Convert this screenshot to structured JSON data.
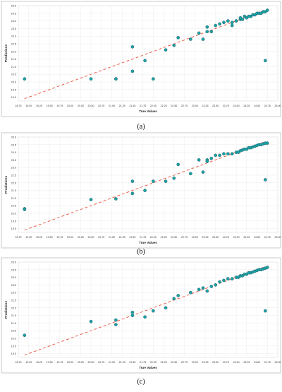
{
  "chart_data": [
    {
      "type": "scatter",
      "caption": "(a)",
      "xlabel": "True Values",
      "ylabel": "Predictions",
      "xlim": [
        18.75,
        25.0
      ],
      "ylim": [
        18.75,
        25.0
      ],
      "xticks": [
        "18.75",
        "19.00",
        "19.25",
        "19.50",
        "19.75",
        "20.00",
        "20.25",
        "20.50",
        "20.75",
        "21.00",
        "21.25",
        "21.50",
        "21.75",
        "22.00",
        "22.25",
        "22.50",
        "22.75",
        "23.00",
        "23.25",
        "23.50",
        "23.75",
        "24.00",
        "24.25",
        "24.50",
        "24.75",
        "25.00"
      ],
      "yticks": [
        "19.0",
        "19.5",
        "20.0",
        "20.5",
        "21.0",
        "21.5",
        "22.0",
        "22.5",
        "23.0",
        "23.5",
        "24.0",
        "24.5",
        "25.0"
      ],
      "grid": true,
      "reference_line": {
        "style": "dashed",
        "color": "#e8503a",
        "x": [
          18.9,
          24.7
        ],
        "y": [
          18.9,
          24.7
        ]
      },
      "points": {
        "x": [
          18.9,
          20.5,
          21.1,
          21.1,
          21.5,
          21.5,
          21.8,
          22.0,
          22.3,
          22.5,
          22.6,
          22.9,
          23.1,
          23.2,
          23.3,
          23.3,
          23.4,
          23.5,
          23.6,
          23.7,
          23.8,
          23.9,
          23.9,
          24.0,
          24.0,
          24.1,
          24.1,
          24.15,
          24.2,
          24.25,
          24.3,
          24.35,
          24.4,
          24.45,
          24.5,
          24.55,
          24.6,
          24.65,
          24.7,
          24.75,
          24.7
        ],
        "y": [
          20.2,
          20.2,
          20.2,
          20.2,
          22.3,
          20.7,
          21.4,
          20.2,
          22.1,
          22.4,
          22.9,
          22.8,
          23.2,
          22.8,
          23.6,
          23.3,
          23.3,
          23.7,
          23.8,
          23.9,
          24.0,
          23.9,
          23.7,
          24.0,
          24.0,
          24.1,
          24.2,
          24.1,
          24.3,
          24.2,
          24.3,
          24.3,
          24.4,
          24.4,
          24.5,
          24.5,
          24.5,
          24.6,
          24.6,
          24.7,
          21.4
        ]
      },
      "point_color": "#1aa3a8"
    },
    {
      "type": "scatter",
      "caption": "(b)",
      "xlabel": "True Values",
      "ylabel": "Predictions",
      "xlim": [
        18.75,
        25.0
      ],
      "ylim": [
        18.75,
        25.0
      ],
      "xticks": [
        "18.75",
        "19.00",
        "19.25",
        "19.50",
        "19.75",
        "20.00",
        "20.25",
        "20.50",
        "20.75",
        "21.00",
        "21.25",
        "21.50",
        "21.75",
        "22.00",
        "22.25",
        "22.50",
        "22.75",
        "23.00",
        "23.25",
        "23.50",
        "23.75",
        "24.00",
        "24.25",
        "24.50",
        "24.75",
        "25.00"
      ],
      "yticks": [
        "19.0",
        "19.5",
        "20.0",
        "20.5",
        "21.0",
        "21.5",
        "22.0",
        "22.5",
        "23.0",
        "23.5",
        "24.0",
        "24.5",
        "25.0"
      ],
      "grid": true,
      "reference_line": {
        "style": "dashed",
        "color": "#e8503a",
        "x": [
          18.9,
          24.7
        ],
        "y": [
          18.9,
          24.7
        ]
      },
      "points": {
        "x": [
          18.9,
          18.9,
          20.5,
          21.1,
          21.5,
          21.5,
          21.8,
          22.0,
          22.3,
          22.5,
          22.6,
          22.9,
          23.1,
          23.2,
          23.3,
          23.3,
          23.4,
          23.5,
          23.6,
          23.7,
          23.8,
          23.9,
          24.0,
          24.05,
          24.1,
          24.15,
          24.2,
          24.25,
          24.3,
          24.35,
          24.4,
          24.45,
          24.5,
          24.55,
          24.6,
          24.65,
          24.7,
          24.75,
          24.7
        ],
        "y": [
          20.3,
          20.25,
          20.9,
          20.95,
          22.1,
          21.3,
          21.5,
          22.1,
          22.1,
          22.3,
          23.2,
          22.6,
          23.5,
          22.7,
          23.5,
          23.4,
          23.6,
          23.8,
          23.8,
          23.9,
          23.9,
          23.9,
          24.0,
          24.0,
          24.1,
          24.15,
          24.2,
          24.2,
          24.3,
          24.3,
          24.35,
          24.4,
          24.45,
          24.5,
          24.5,
          24.55,
          24.6,
          24.6,
          22.2
        ]
      },
      "point_color": "#1aa3a8"
    },
    {
      "type": "scatter",
      "caption": "(c)",
      "xlabel": "True Values",
      "ylabel": "Predictions",
      "xlim": [
        18.75,
        25.0
      ],
      "ylim": [
        18.75,
        25.0
      ],
      "xticks": [
        "18.75",
        "19.00",
        "19.25",
        "19.50",
        "19.75",
        "20.00",
        "20.25",
        "20.50",
        "20.75",
        "21.00",
        "21.25",
        "21.50",
        "21.75",
        "22.00",
        "22.25",
        "22.50",
        "22.75",
        "23.00",
        "23.25",
        "23.50",
        "23.75",
        "24.00",
        "24.25",
        "24.50",
        "24.75",
        "25.00"
      ],
      "yticks": [
        "19.0",
        "19.5",
        "20.0",
        "20.5",
        "21.0",
        "21.5",
        "22.0",
        "22.5",
        "23.0",
        "23.5",
        "24.0",
        "24.5",
        "25.0"
      ],
      "grid": true,
      "reference_line": {
        "style": "dashed",
        "color": "#e8503a",
        "x": [
          18.9,
          24.7
        ],
        "y": [
          18.9,
          24.7
        ]
      },
      "points": {
        "x": [
          18.9,
          20.5,
          21.1,
          21.1,
          21.5,
          21.5,
          21.8,
          22.0,
          22.3,
          22.5,
          22.6,
          22.9,
          23.1,
          23.2,
          23.3,
          23.4,
          23.5,
          23.6,
          23.7,
          23.8,
          23.9,
          24.0,
          24.05,
          24.1,
          24.15,
          24.2,
          24.25,
          24.3,
          24.35,
          24.4,
          24.45,
          24.5,
          24.55,
          24.6,
          24.65,
          24.7,
          24.75,
          24.7
        ],
        "y": [
          20.2,
          21.1,
          20.9,
          21.2,
          21.7,
          21.5,
          21.4,
          21.8,
          22.0,
          22.6,
          22.8,
          23.0,
          23.2,
          23.3,
          23.1,
          23.4,
          23.5,
          23.7,
          23.8,
          23.9,
          23.9,
          24.0,
          24.0,
          24.1,
          24.1,
          24.2,
          24.2,
          24.3,
          24.3,
          24.35,
          24.4,
          24.45,
          24.5,
          24.5,
          24.55,
          24.6,
          24.65,
          21.8
        ]
      },
      "point_color": "#1aa3a8"
    }
  ]
}
